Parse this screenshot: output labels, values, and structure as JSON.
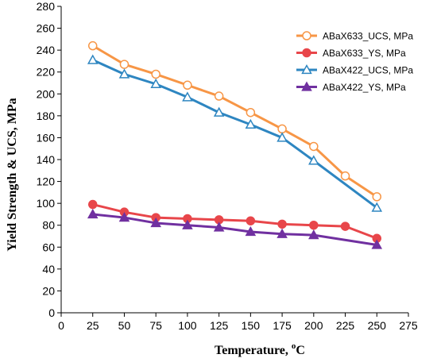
{
  "chart_data": {
    "type": "line",
    "xlabel": "Temperature, ",
    "xlabel_sup": "o",
    "xlabel_unit": "C",
    "ylabel": "Yield Strength & UCS, MPa",
    "xlim": [
      0,
      275
    ],
    "ylim": [
      0,
      280
    ],
    "x_ticks": [
      "0",
      "25",
      "50",
      "75",
      "100",
      "125",
      "150",
      "175",
      "200",
      "225",
      "250",
      "275"
    ],
    "y_ticks": [
      "0",
      "20",
      "40",
      "60",
      "80",
      "100",
      "120",
      "140",
      "160",
      "180",
      "200",
      "220",
      "240",
      "260",
      "280"
    ],
    "grid": false,
    "legend_position": "top-right",
    "series": [
      {
        "name": "ABaX633_UCS, MPa",
        "color": "#F79646",
        "marker": "circle-open",
        "x": [
          25,
          50,
          75,
          100,
          125,
          150,
          175,
          200,
          225,
          250
        ],
        "y": [
          244,
          227,
          218,
          208,
          198,
          183,
          168,
          152,
          125,
          106
        ]
      },
      {
        "name": "ABaX633_YS, MPa",
        "color": "#E8464A",
        "marker": "circle-filled",
        "x": [
          25,
          50,
          75,
          100,
          125,
          150,
          175,
          200,
          225,
          250
        ],
        "y": [
          99,
          92,
          87,
          86,
          85,
          84,
          81,
          80,
          79,
          68
        ]
      },
      {
        "name": "ABaX422_UCS, MPa",
        "color": "#2E86C1",
        "marker": "triangle-open",
        "x": [
          25,
          50,
          75,
          100,
          125,
          150,
          175,
          200,
          250
        ],
        "y": [
          231,
          218,
          209,
          197,
          183,
          172,
          160,
          139,
          96
        ]
      },
      {
        "name": "ABaX422_YS, MPa",
        "color": "#7030A0",
        "marker": "triangle-filled",
        "x": [
          25,
          50,
          75,
          100,
          125,
          150,
          175,
          200,
          250
        ],
        "y": [
          90,
          87,
          82,
          80,
          78,
          74,
          72,
          71,
          62
        ]
      }
    ]
  }
}
